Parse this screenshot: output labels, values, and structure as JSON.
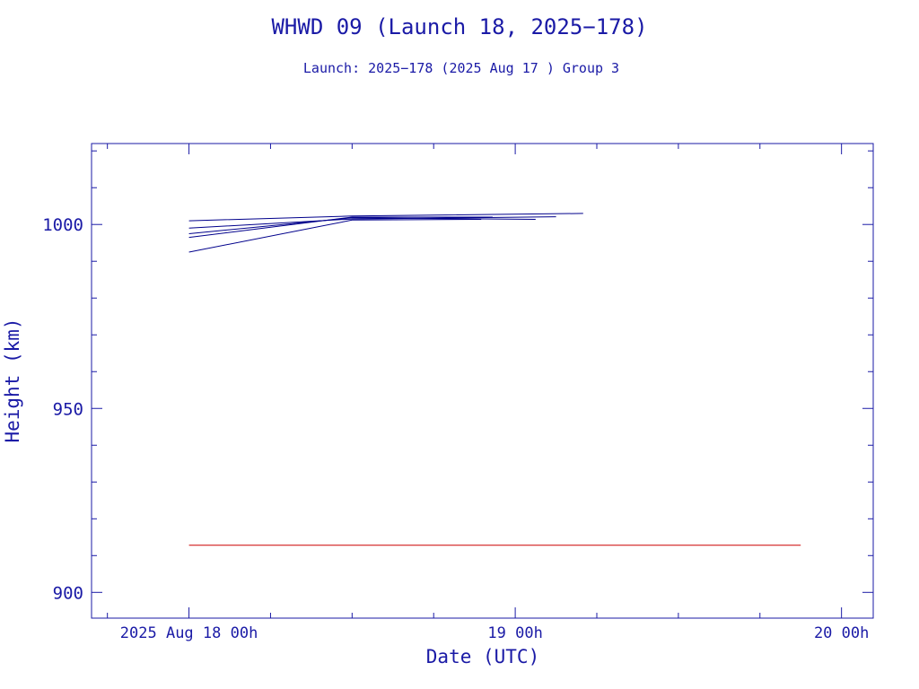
{
  "colors": {
    "axis": "#1a1aa6",
    "orbit": "#00008b",
    "reference": "#cc0000",
    "background": "#ffffff"
  },
  "chart_data": {
    "type": "line",
    "title": "WHWD 09 (Launch 18, 2025−178)",
    "subtitle": "Launch: 2025−178  (2025 Aug 17 )  Group 3",
    "xlabel": "Date (UTC)",
    "ylabel": "Height (km)",
    "x_unit": "UTC",
    "xlim": [
      "2025-08-17 16:50",
      "2025-08-20 02:20"
    ],
    "ylim": [
      893,
      1022
    ],
    "x_ticks": [
      {
        "value": "2025-08-18 00:00",
        "label": "2025 Aug 18  00h"
      },
      {
        "value": "2025-08-19 00:00",
        "label": "19  00h"
      },
      {
        "value": "2025-08-20 00:00",
        "label": "20  00h"
      }
    ],
    "y_ticks": [
      {
        "value": 900,
        "label": "900"
      },
      {
        "value": 950,
        "label": "950"
      },
      {
        "value": 1000,
        "label": "1000"
      }
    ],
    "grid": false,
    "series": [
      {
        "color": "#00008b",
        "x": [
          "2025-08-18 00:00",
          "2025-08-18 12:00",
          "2025-08-19 05:00"
        ],
        "y": [
          1001.0,
          1002.3,
          1003.0
        ]
      },
      {
        "color": "#00008b",
        "x": [
          "2025-08-18 00:00",
          "2025-08-18 12:00",
          "2025-08-19 03:00"
        ],
        "y": [
          999.0,
          1001.5,
          1002.1
        ]
      },
      {
        "color": "#00008b",
        "x": [
          "2025-08-18 00:00",
          "2025-08-18 12:00",
          "2025-08-19 01:30"
        ],
        "y": [
          997.5,
          1001.8,
          1001.4
        ]
      },
      {
        "color": "#00008b",
        "x": [
          "2025-08-18 00:00",
          "2025-08-18 12:00",
          "2025-08-18 22:20"
        ],
        "y": [
          996.5,
          1002.0,
          1002.0
        ]
      },
      {
        "color": "#00008b",
        "x": [
          "2025-08-18 00:00",
          "2025-08-18 12:00",
          "2025-08-18 21:30"
        ],
        "y": [
          992.5,
          1001.2,
          1001.4
        ]
      },
      {
        "color": "#cc0000",
        "x": [
          "2025-08-18 00:00",
          "2025-08-19 21:00"
        ],
        "y": [
          912.8,
          912.8
        ]
      }
    ]
  }
}
